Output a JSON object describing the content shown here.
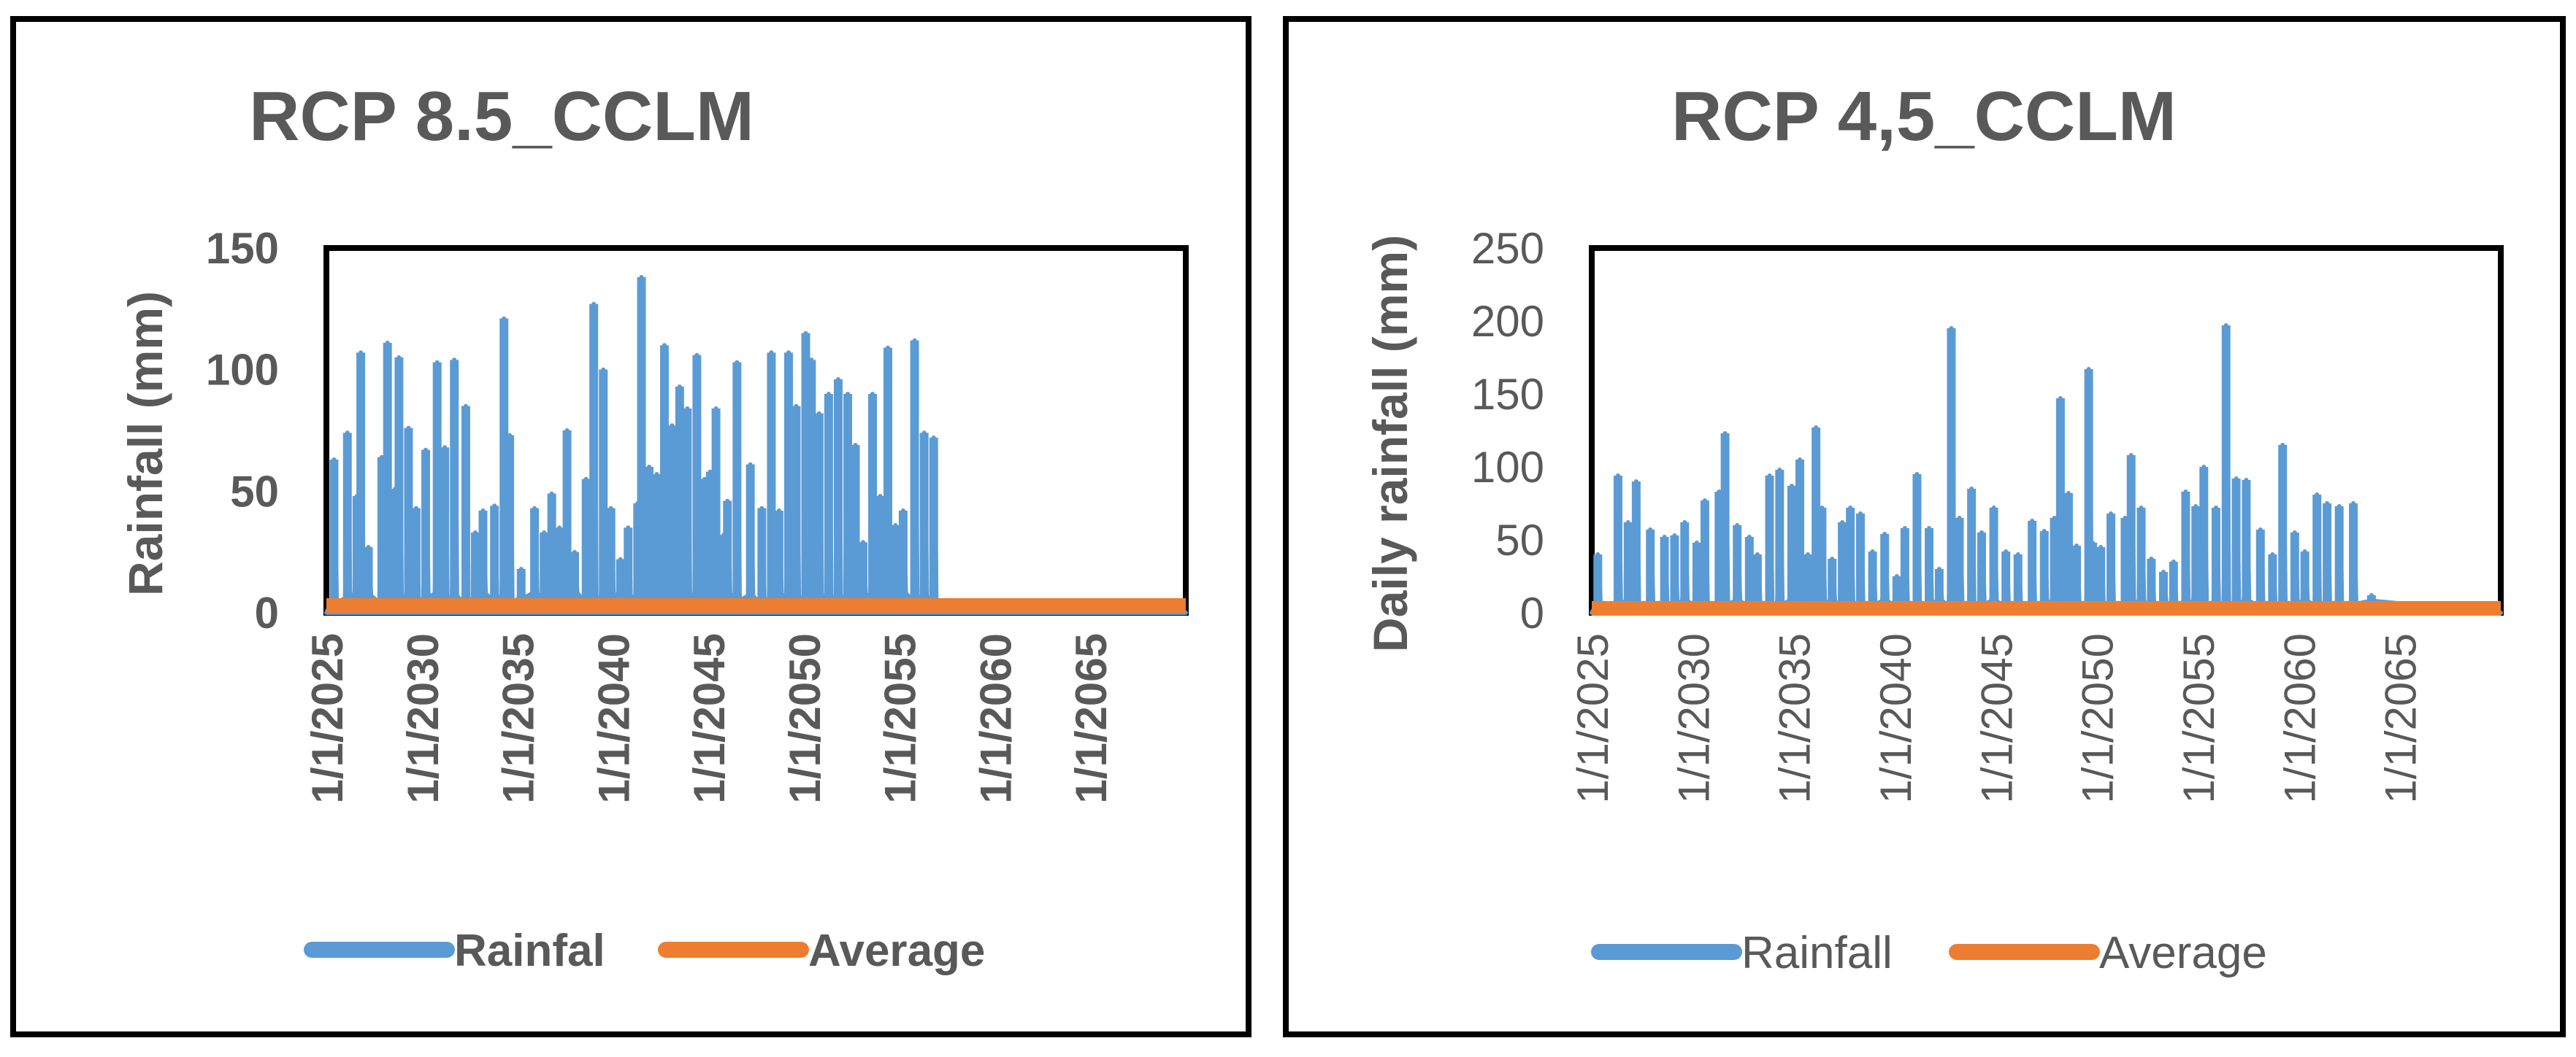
{
  "chart_data": [
    {
      "type": "line",
      "title": "RCP 8.5_CCLM",
      "xlabel": "",
      "ylabel": "Rainfall (mm)",
      "ylim": [
        0,
        150
      ],
      "yticks": [
        0,
        50,
        100,
        150
      ],
      "xlim": [
        2025,
        2070
      ],
      "x_tick_labels": [
        "1/1/2025",
        "1/1/2030",
        "1/1/2035",
        "1/1/2040",
        "1/1/2045",
        "1/1/2050",
        "1/1/2055",
        "1/1/2060",
        "1/1/2065"
      ],
      "x_tick_years": [
        2025,
        2030,
        2035,
        2040,
        2045,
        2050,
        2055,
        2060,
        2065
      ],
      "legend_position": "bottom",
      "series": [
        {
          "name": "Rainfal",
          "color": "#5b9bd5",
          "peaks": [
            [
              2025.4,
              63
            ],
            [
              2026.1,
              74
            ],
            [
              2026.6,
              48
            ],
            [
              2026.8,
              107
            ],
            [
              2027.2,
              27
            ],
            [
              2027.9,
              64
            ],
            [
              2028.2,
              111
            ],
            [
              2028.6,
              51
            ],
            [
              2028.8,
              105
            ],
            [
              2029.3,
              76
            ],
            [
              2029.7,
              43
            ],
            [
              2030.2,
              67
            ],
            [
              2030.8,
              103
            ],
            [
              2031.2,
              68
            ],
            [
              2031.7,
              104
            ],
            [
              2032.3,
              85
            ],
            [
              2032.8,
              33
            ],
            [
              2033.2,
              42
            ],
            [
              2033.8,
              44
            ],
            [
              2034.3,
              121
            ],
            [
              2034.6,
              73
            ],
            [
              2035.2,
              18
            ],
            [
              2035.9,
              43
            ],
            [
              2036.4,
              33
            ],
            [
              2036.8,
              49
            ],
            [
              2037.2,
              35
            ],
            [
              2037.6,
              75
            ],
            [
              2038.0,
              25
            ],
            [
              2038.6,
              55
            ],
            [
              2039.0,
              127
            ],
            [
              2039.5,
              100
            ],
            [
              2039.9,
              43
            ],
            [
              2040.4,
              22
            ],
            [
              2040.8,
              35
            ],
            [
              2041.3,
              45
            ],
            [
              2041.5,
              138
            ],
            [
              2041.9,
              60
            ],
            [
              2042.3,
              57
            ],
            [
              2042.7,
              110
            ],
            [
              2043.1,
              77
            ],
            [
              2043.5,
              93
            ],
            [
              2043.9,
              84
            ],
            [
              2044.4,
              106
            ],
            [
              2044.8,
              55
            ],
            [
              2045.1,
              58
            ],
            [
              2045.4,
              84
            ],
            [
              2045.8,
              32
            ],
            [
              2046.0,
              46
            ],
            [
              2046.5,
              103
            ],
            [
              2047.2,
              61
            ],
            [
              2047.8,
              43
            ],
            [
              2048.3,
              107
            ],
            [
              2048.7,
              42
            ],
            [
              2049.2,
              107
            ],
            [
              2049.6,
              85
            ],
            [
              2050.1,
              115
            ],
            [
              2050.4,
              104
            ],
            [
              2050.8,
              82
            ],
            [
              2051.3,
              90
            ],
            [
              2051.8,
              96
            ],
            [
              2052.3,
              90
            ],
            [
              2052.7,
              69
            ],
            [
              2053.1,
              29
            ],
            [
              2053.6,
              90
            ],
            [
              2054.0,
              48
            ],
            [
              2054.4,
              109
            ],
            [
              2054.8,
              36
            ],
            [
              2055.2,
              42
            ],
            [
              2055.8,
              112
            ],
            [
              2056.3,
              74
            ],
            [
              2056.8,
              72
            ]
          ]
        },
        {
          "name": "Average",
          "color": "#ed7d31",
          "constant_value": 3
        }
      ]
    },
    {
      "type": "line",
      "title": "RCP 4,5_CCLM",
      "xlabel": "",
      "ylabel": "Daily rainfall (mm)",
      "ylim": [
        0,
        250
      ],
      "yticks": [
        0,
        50,
        100,
        150,
        200,
        250
      ],
      "xlim": [
        2025,
        2070
      ],
      "x_tick_labels": [
        "1/1/2025",
        "1/1/2030",
        "1/1/2035",
        "1/1/2040",
        "1/1/2045",
        "1/1/2050",
        "1/1/2055",
        "1/1/2060",
        "1/1/2065"
      ],
      "x_tick_years": [
        2025,
        2030,
        2035,
        2040,
        2045,
        2050,
        2055,
        2060,
        2065
      ],
      "legend_position": "bottom",
      "series": [
        {
          "name": "Rainfall",
          "color": "#5b9bd5",
          "peaks": [
            [
              2025.3,
              40
            ],
            [
              2026.3,
              94
            ],
            [
              2026.8,
              62
            ],
            [
              2027.2,
              90
            ],
            [
              2027.9,
              57
            ],
            [
              2028.6,
              52
            ],
            [
              2029.1,
              53
            ],
            [
              2029.6,
              62
            ],
            [
              2030.2,
              48
            ],
            [
              2030.6,
              77
            ],
            [
              2031.3,
              83
            ],
            [
              2031.6,
              123
            ],
            [
              2032.2,
              60
            ],
            [
              2032.8,
              52
            ],
            [
              2033.2,
              40
            ],
            [
              2033.8,
              94
            ],
            [
              2034.3,
              98
            ],
            [
              2034.9,
              87
            ],
            [
              2035.3,
              105
            ],
            [
              2035.7,
              40
            ],
            [
              2036.1,
              127
            ],
            [
              2036.4,
              72
            ],
            [
              2036.9,
              37
            ],
            [
              2037.4,
              62
            ],
            [
              2037.8,
              72
            ],
            [
              2038.3,
              68
            ],
            [
              2038.9,
              42
            ],
            [
              2039.5,
              54
            ],
            [
              2040.1,
              25
            ],
            [
              2040.5,
              58
            ],
            [
              2041.1,
              95
            ],
            [
              2041.7,
              58
            ],
            [
              2042.2,
              30
            ],
            [
              2042.8,
              195
            ],
            [
              2043.2,
              65
            ],
            [
              2043.8,
              85
            ],
            [
              2044.3,
              55
            ],
            [
              2044.9,
              72
            ],
            [
              2045.5,
              42
            ],
            [
              2046.1,
              40
            ],
            [
              2046.8,
              63
            ],
            [
              2047.4,
              56
            ],
            [
              2047.9,
              65
            ],
            [
              2048.2,
              147
            ],
            [
              2048.6,
              82
            ],
            [
              2049.0,
              46
            ],
            [
              2049.6,
              167
            ],
            [
              2049.8,
              48
            ],
            [
              2050.2,
              45
            ],
            [
              2050.7,
              68
            ],
            [
              2051.4,
              65
            ],
            [
              2051.7,
              108
            ],
            [
              2052.2,
              72
            ],
            [
              2052.7,
              37
            ],
            [
              2053.3,
              28
            ],
            [
              2053.8,
              35
            ],
            [
              2054.4,
              83
            ],
            [
              2054.9,
              73
            ],
            [
              2055.3,
              100
            ],
            [
              2055.9,
              72
            ],
            [
              2056.4,
              197
            ],
            [
              2056.9,
              92
            ],
            [
              2057.4,
              91
            ],
            [
              2058.1,
              57
            ],
            [
              2058.7,
              40
            ],
            [
              2059.2,
              115
            ],
            [
              2059.8,
              55
            ],
            [
              2060.3,
              42
            ],
            [
              2060.9,
              81
            ],
            [
              2061.4,
              75
            ],
            [
              2062.0,
              73
            ],
            [
              2062.7,
              75
            ],
            [
              2063.6,
              12
            ]
          ]
        },
        {
          "name": "Average",
          "color": "#ed7d31",
          "constant_value": 3
        }
      ]
    }
  ]
}
